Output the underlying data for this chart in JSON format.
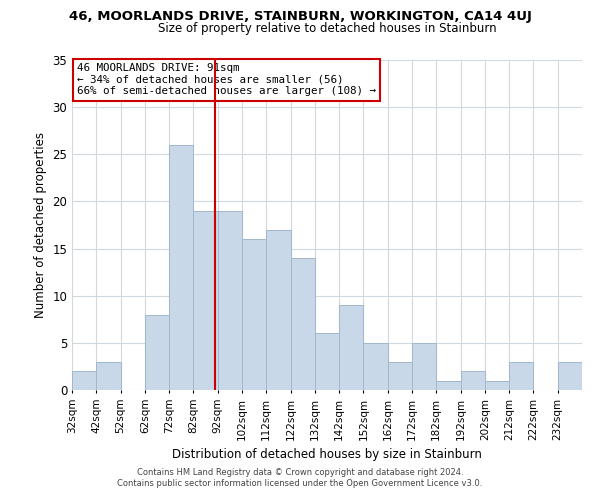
{
  "title": "46, MOORLANDS DRIVE, STAINBURN, WORKINGTON, CA14 4UJ",
  "subtitle": "Size of property relative to detached houses in Stainburn",
  "xlabel": "Distribution of detached houses by size in Stainburn",
  "ylabel": "Number of detached properties",
  "footer1": "Contains HM Land Registry data © Crown copyright and database right 2024.",
  "footer2": "Contains public sector information licensed under the Open Government Licence v3.0.",
  "annotation_line1": "46 MOORLANDS DRIVE: 91sqm",
  "annotation_line2": "← 34% of detached houses are smaller (56)",
  "annotation_line3": "66% of semi-detached houses are larger (108) →",
  "bar_color": "#c8d8e8",
  "bar_edge_color": "#a0b8cc",
  "ref_line_x": 91,
  "ref_line_color": "#cc0000",
  "bins": [
    32,
    42,
    52,
    62,
    72,
    82,
    92,
    102,
    112,
    122,
    132,
    142,
    152,
    162,
    172,
    182,
    192,
    202,
    212,
    222,
    232,
    242
  ],
  "counts": [
    2,
    3,
    0,
    8,
    26,
    19,
    19,
    16,
    17,
    14,
    6,
    9,
    5,
    3,
    5,
    1,
    2,
    1,
    3,
    0,
    3
  ],
  "ylim": [
    0,
    35
  ],
  "yticks": [
    0,
    5,
    10,
    15,
    20,
    25,
    30,
    35
  ],
  "background_color": "#ffffff",
  "grid_color": "#d0d8e0"
}
